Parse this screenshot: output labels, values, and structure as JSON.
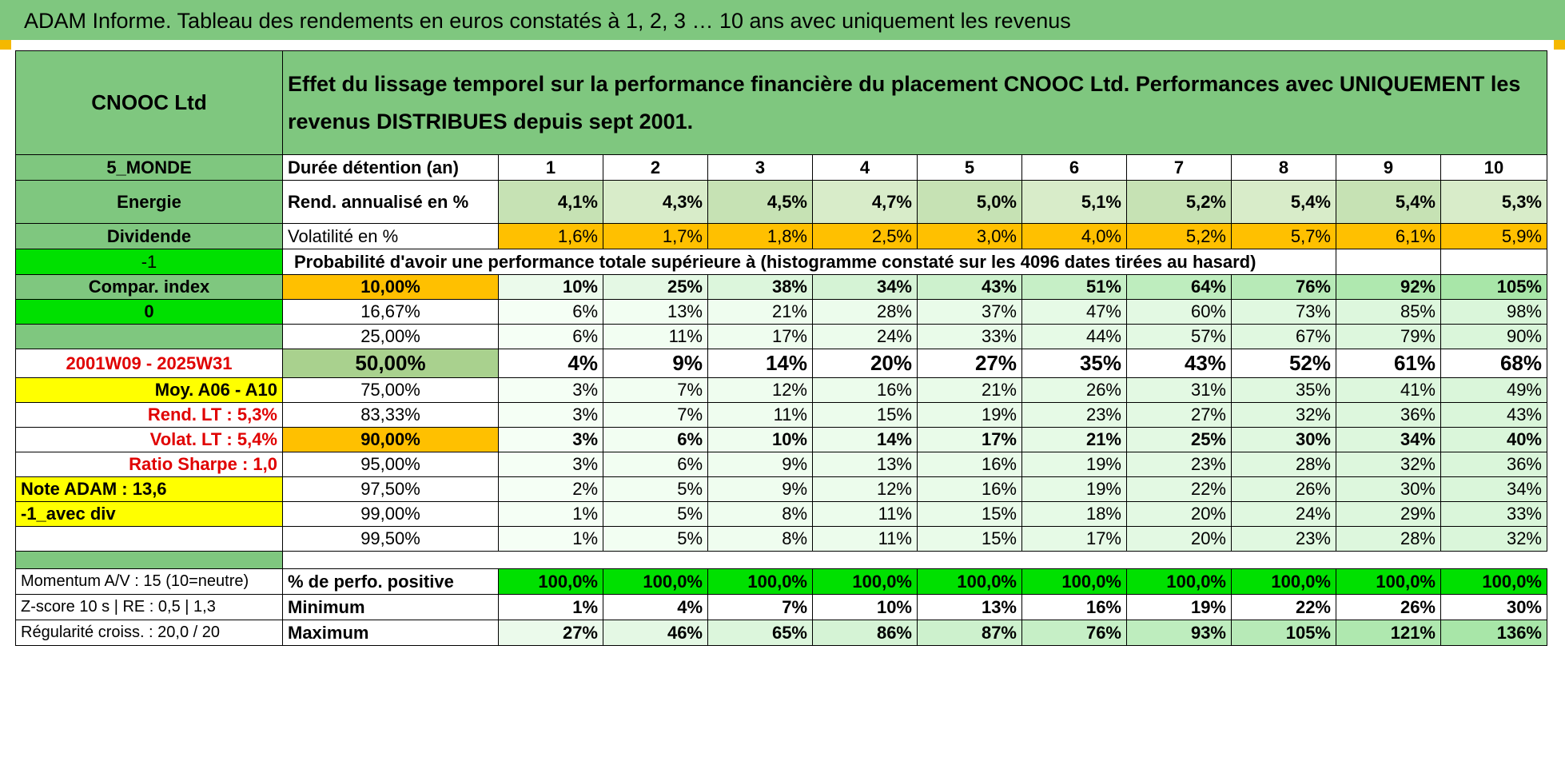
{
  "title": "ADAM Informe. Tableau des rendements en euros constatés à 1, 2, 3 … 10 ans avec uniquement les revenus",
  "header": {
    "name": "CNOOC Ltd",
    "description": "Effet du lissage temporel sur la performance financière du placement CNOOC Ltd. Performances avec UNIQUEMENT les revenus DISTRIBUES depuis sept 2001."
  },
  "side": {
    "region": "5_MONDE",
    "sector": "Energie",
    "type": "Dividende",
    "param1": "-1",
    "compar": "Compar. index",
    "param2": "0",
    "empty": "",
    "period": "2001W09 - 2025W31",
    "moy": "Moy. A06 - A10",
    "rend_lt": "Rend. LT :    5,3%",
    "volat_lt": "Volat. LT :    5,4%",
    "sharpe": "Ratio Sharpe :    1,0",
    "note": "Note ADAM : 13,6",
    "div": "-1_avec div"
  },
  "labels": {
    "duree": "Durée détention (an)",
    "rend": "Rend. annualisé en %",
    "vol": "Volatilité en %",
    "proba": "Probabilité d'avoir une performance totale supérieure à (histogramme constaté sur les 4096 dates tirées au hasard)",
    "positive": "% de perfo. positive",
    "minimum": "Minimum",
    "maximum": "Maximum"
  },
  "years": [
    "1",
    "2",
    "3",
    "4",
    "5",
    "6",
    "7",
    "8",
    "9",
    "10"
  ],
  "rend": [
    "4,1%",
    "4,3%",
    "4,5%",
    "4,7%",
    "5,0%",
    "5,1%",
    "5,2%",
    "5,4%",
    "5,4%",
    "5,3%"
  ],
  "vol": [
    "1,6%",
    "1,7%",
    "1,8%",
    "2,5%",
    "3,0%",
    "4,0%",
    "5,2%",
    "5,7%",
    "6,1%",
    "5,9%"
  ],
  "prob_rows": [
    {
      "pct": "10,00%",
      "vals": [
        "10%",
        "25%",
        "38%",
        "34%",
        "43%",
        "51%",
        "64%",
        "76%",
        "92%",
        "105%"
      ]
    },
    {
      "pct": "16,67%",
      "vals": [
        "6%",
        "13%",
        "21%",
        "28%",
        "37%",
        "47%",
        "60%",
        "73%",
        "85%",
        "98%"
      ]
    },
    {
      "pct": "25,00%",
      "vals": [
        "6%",
        "11%",
        "17%",
        "24%",
        "33%",
        "44%",
        "57%",
        "67%",
        "79%",
        "90%"
      ]
    },
    {
      "pct": "50,00%",
      "vals": [
        "4%",
        "9%",
        "14%",
        "20%",
        "27%",
        "35%",
        "43%",
        "52%",
        "61%",
        "68%"
      ]
    },
    {
      "pct": "75,00%",
      "vals": [
        "3%",
        "7%",
        "12%",
        "16%",
        "21%",
        "26%",
        "31%",
        "35%",
        "41%",
        "49%"
      ]
    },
    {
      "pct": "83,33%",
      "vals": [
        "3%",
        "7%",
        "11%",
        "15%",
        "19%",
        "23%",
        "27%",
        "32%",
        "36%",
        "43%"
      ]
    },
    {
      "pct": "90,00%",
      "vals": [
        "3%",
        "6%",
        "10%",
        "14%",
        "17%",
        "21%",
        "25%",
        "30%",
        "34%",
        "40%"
      ]
    },
    {
      "pct": "95,00%",
      "vals": [
        "3%",
        "6%",
        "9%",
        "13%",
        "16%",
        "19%",
        "23%",
        "28%",
        "32%",
        "36%"
      ]
    },
    {
      "pct": "97,50%",
      "vals": [
        "2%",
        "5%",
        "9%",
        "12%",
        "16%",
        "19%",
        "22%",
        "26%",
        "30%",
        "34%"
      ]
    },
    {
      "pct": "99,00%",
      "vals": [
        "1%",
        "5%",
        "8%",
        "11%",
        "15%",
        "18%",
        "20%",
        "24%",
        "29%",
        "33%"
      ]
    },
    {
      "pct": "99,50%",
      "vals": [
        "1%",
        "5%",
        "8%",
        "11%",
        "15%",
        "17%",
        "20%",
        "23%",
        "28%",
        "32%"
      ]
    }
  ],
  "bottom": {
    "momentum": "Momentum A/V : 15 (10=neutre)",
    "zscore": "Z-score 10 s | RE : 0,5 | 1,3",
    "regularite": "Régularité croiss. : 20,0 / 20",
    "positive": [
      "100,0%",
      "100,0%",
      "100,0%",
      "100,0%",
      "100,0%",
      "100,0%",
      "100,0%",
      "100,0%",
      "100,0%",
      "100,0%"
    ],
    "minimum": [
      "1%",
      "4%",
      "7%",
      "10%",
      "13%",
      "16%",
      "19%",
      "22%",
      "26%",
      "30%"
    ],
    "maximum": [
      "27%",
      "46%",
      "65%",
      "86%",
      "87%",
      "76%",
      "93%",
      "105%",
      "121%",
      "136%"
    ]
  }
}
